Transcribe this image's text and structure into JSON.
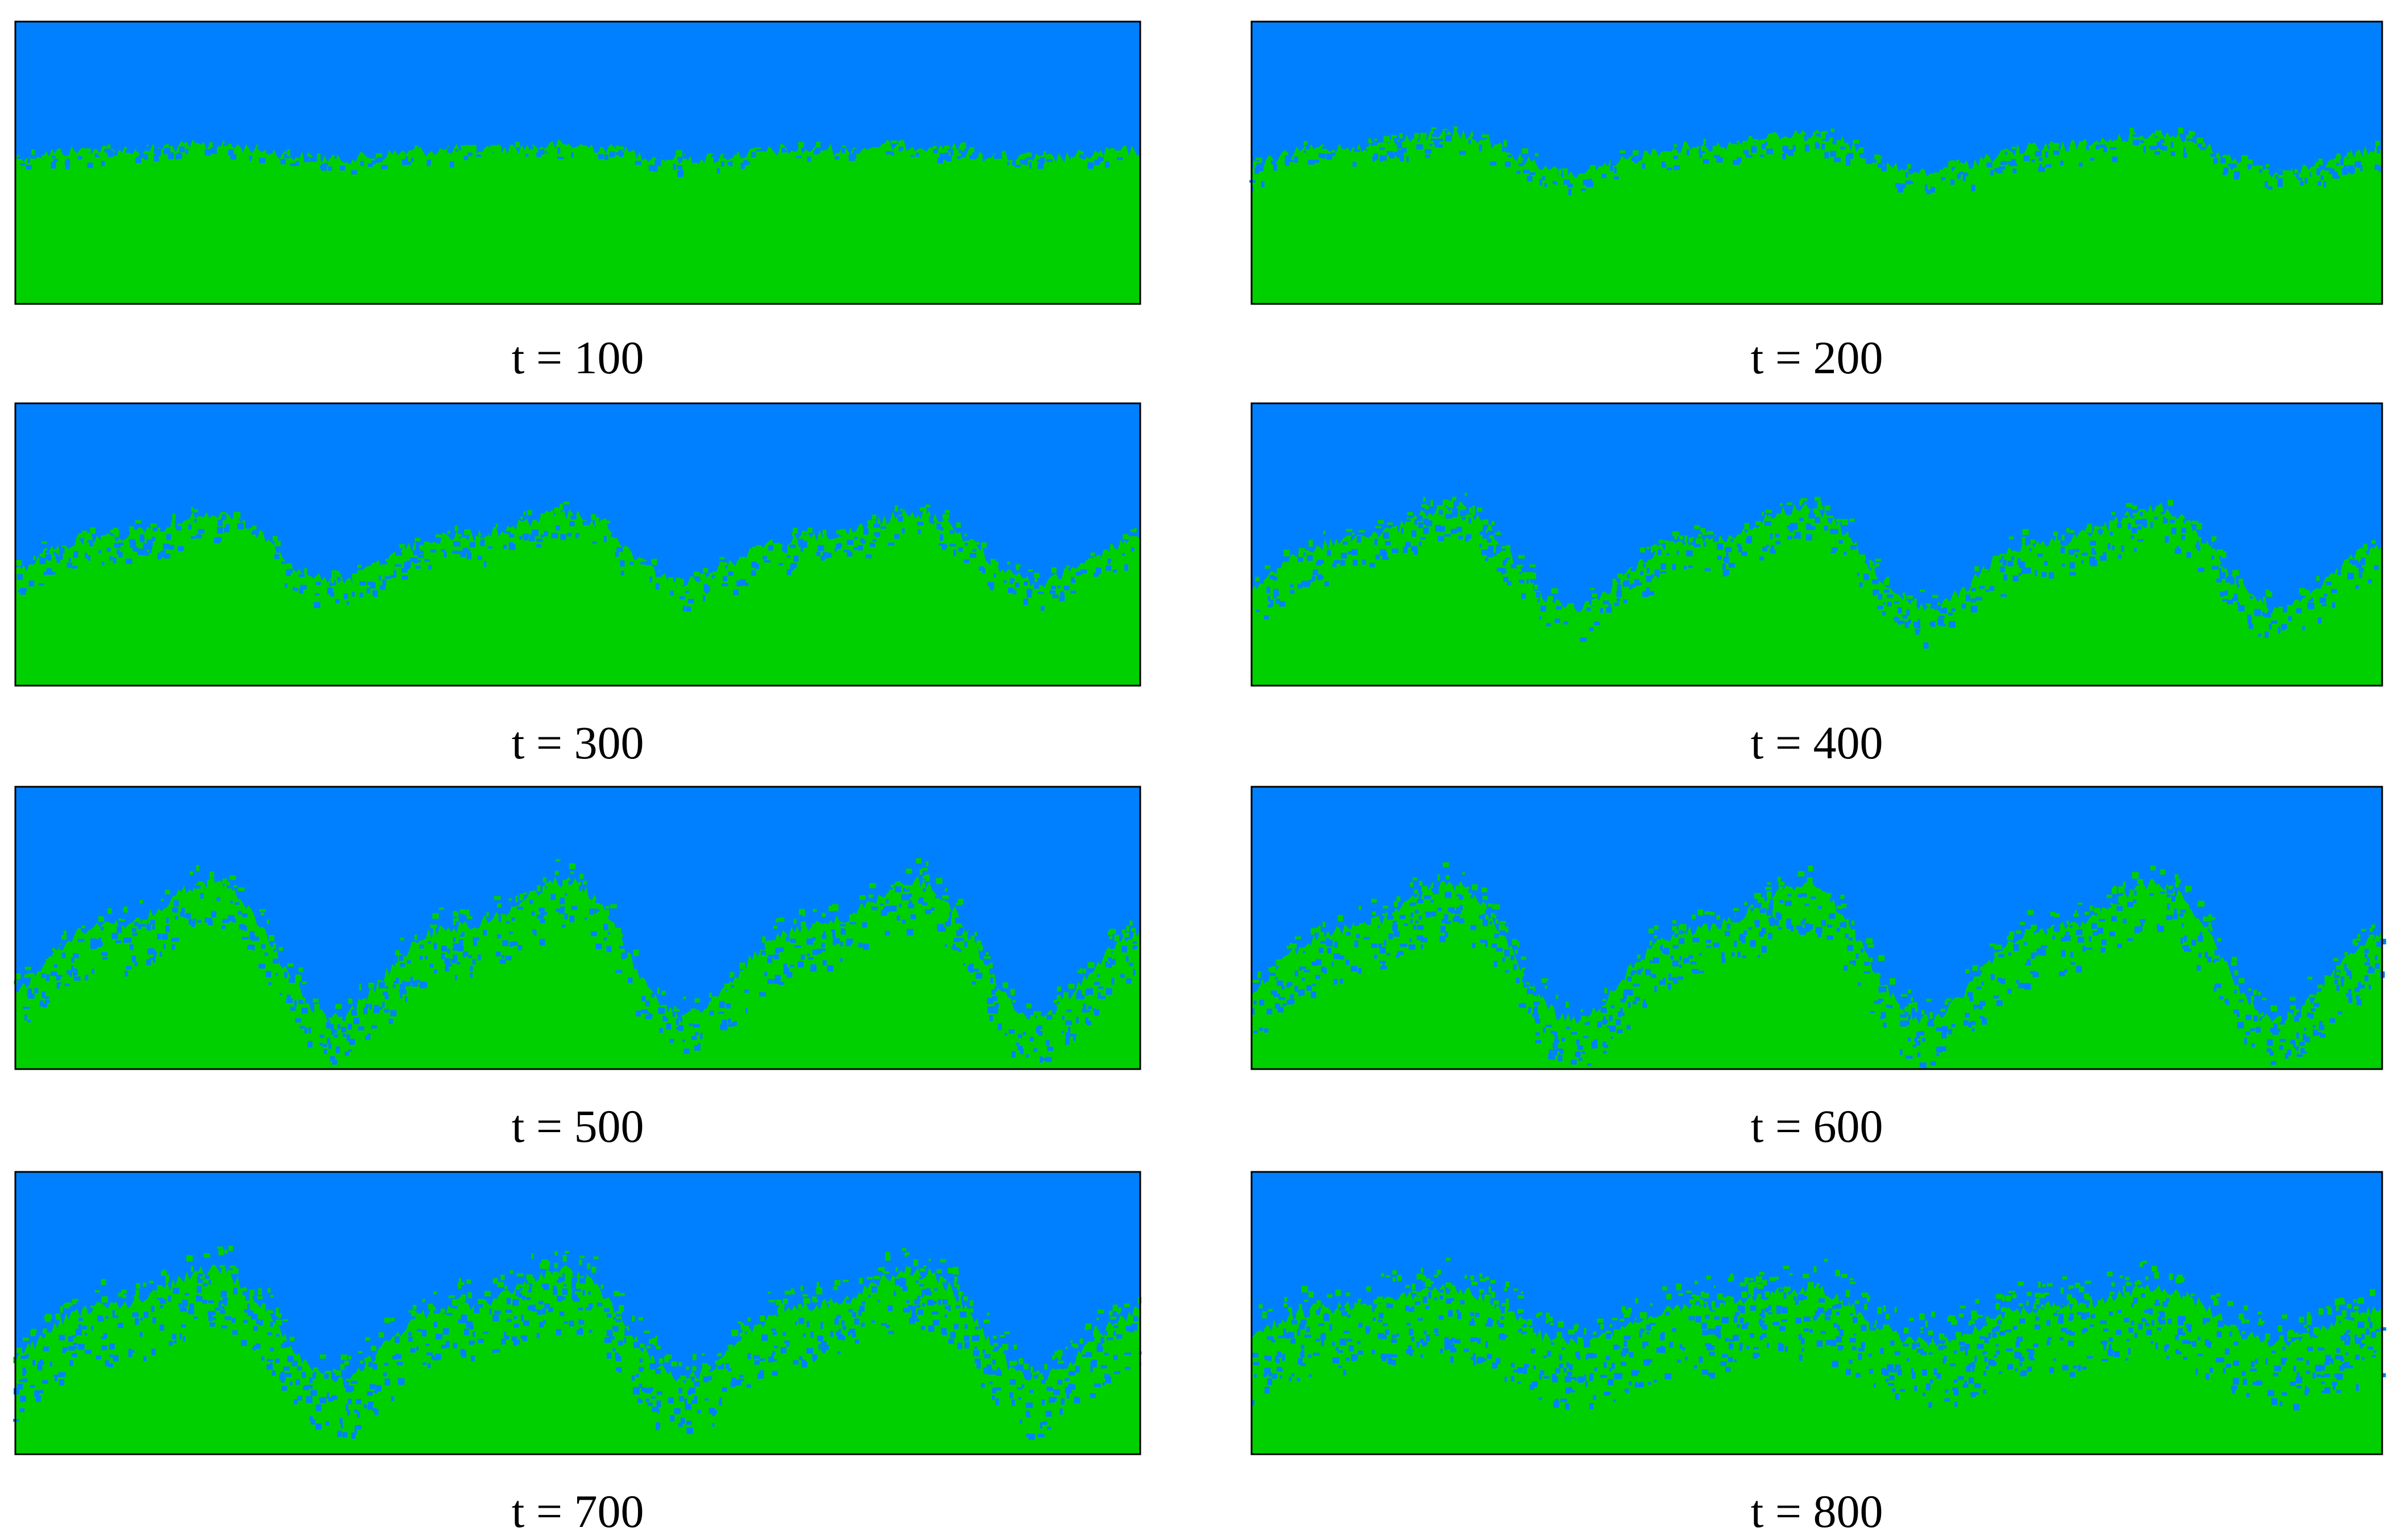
{
  "panels": [
    {
      "caption": "t = 100"
    },
    {
      "caption": "t = 200"
    },
    {
      "caption": "t = 300"
    },
    {
      "caption": "t = 400"
    },
    {
      "caption": "t = 500"
    },
    {
      "caption": "t = 600"
    },
    {
      "caption": "t = 700"
    },
    {
      "caption": "t = 800"
    }
  ]
}
